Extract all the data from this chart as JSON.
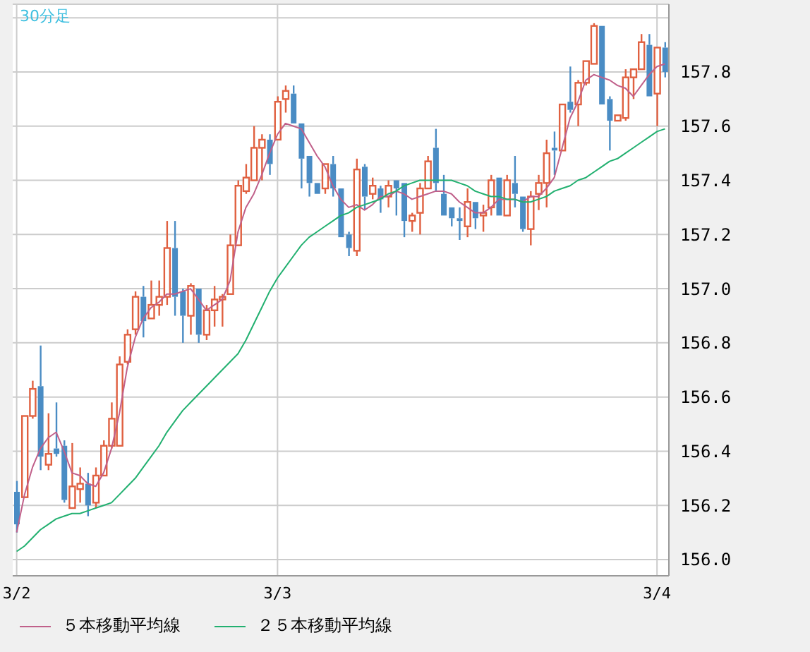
{
  "chart_data": {
    "type": "candlestick",
    "title": "30分足",
    "categories": [
      "3/2",
      null,
      null,
      null,
      null,
      null,
      null,
      null,
      null,
      null,
      null,
      null,
      null,
      null,
      null,
      null,
      null,
      null,
      null,
      null,
      null,
      null,
      null,
      null,
      null,
      null,
      null,
      null,
      null,
      null,
      null,
      null,
      null,
      "3/3",
      null,
      null,
      null,
      null,
      null,
      null,
      null,
      null,
      null,
      null,
      null,
      null,
      null,
      null,
      null,
      null,
      null,
      null,
      null,
      null,
      null,
      null,
      null,
      null,
      null,
      null,
      null,
      null,
      null,
      null,
      null,
      null,
      null,
      null,
      null,
      null,
      null,
      null,
      null,
      null,
      null,
      null,
      null,
      null,
      null,
      null,
      null,
      "3/4",
      null
    ],
    "ohlc": [
      [
        156.25,
        156.29,
        156.1,
        156.13
      ],
      [
        156.23,
        156.53,
        156.23,
        156.53
      ],
      [
        156.53,
        156.66,
        156.52,
        156.63
      ],
      [
        156.64,
        156.79,
        156.33,
        156.38
      ],
      [
        156.35,
        156.54,
        156.33,
        156.39
      ],
      [
        156.41,
        156.58,
        156.38,
        156.39
      ],
      [
        156.42,
        156.44,
        156.21,
        156.22
      ],
      [
        156.19,
        156.43,
        156.19,
        156.27
      ],
      [
        156.26,
        156.34,
        156.21,
        156.28
      ],
      [
        156.28,
        156.32,
        156.16,
        156.2
      ],
      [
        156.21,
        156.34,
        156.19,
        156.31
      ],
      [
        156.31,
        156.44,
        156.31,
        156.42
      ],
      [
        156.42,
        156.58,
        156.41,
        156.52
      ],
      [
        156.42,
        156.75,
        156.42,
        156.72
      ],
      [
        156.73,
        156.85,
        156.72,
        156.83
      ],
      [
        156.85,
        156.99,
        156.83,
        156.97
      ],
      [
        156.97,
        157.01,
        156.82,
        156.88
      ],
      [
        156.89,
        157.03,
        156.89,
        156.94
      ],
      [
        156.94,
        157.03,
        156.9,
        156.97
      ],
      [
        156.97,
        157.25,
        156.94,
        157.15
      ],
      [
        157.15,
        157.25,
        156.9,
        156.97
      ],
      [
        156.99,
        157.0,
        156.8,
        156.9
      ],
      [
        156.9,
        157.02,
        156.83,
        157.01
      ],
      [
        157.0,
        157.0,
        156.8,
        156.83
      ],
      [
        156.83,
        156.94,
        156.81,
        156.92
      ],
      [
        156.92,
        157.01,
        156.86,
        156.96
      ],
      [
        156.96,
        156.98,
        156.86,
        156.97
      ],
      [
        156.98,
        157.2,
        156.98,
        157.16
      ],
      [
        157.16,
        157.4,
        157.16,
        157.38
      ],
      [
        157.36,
        157.46,
        157.35,
        157.41
      ],
      [
        157.4,
        157.6,
        157.4,
        157.52
      ],
      [
        157.52,
        157.57,
        157.4,
        157.55
      ],
      [
        157.55,
        157.57,
        157.42,
        157.46
      ],
      [
        157.55,
        157.71,
        157.55,
        157.69
      ],
      [
        157.7,
        157.75,
        157.65,
        157.73
      ],
      [
        157.72,
        157.75,
        157.61,
        157.61
      ],
      [
        157.61,
        157.61,
        157.37,
        157.48
      ],
      [
        157.49,
        157.49,
        157.34,
        157.39
      ],
      [
        157.39,
        157.39,
        157.35,
        157.35
      ],
      [
        157.37,
        157.46,
        157.35,
        157.46
      ],
      [
        157.46,
        157.49,
        157.34,
        157.37
      ],
      [
        157.37,
        157.37,
        157.19,
        157.19
      ],
      [
        157.2,
        157.21,
        157.12,
        157.15
      ],
      [
        157.14,
        157.48,
        157.12,
        157.44
      ],
      [
        157.45,
        157.46,
        157.29,
        157.34
      ],
      [
        157.35,
        157.41,
        157.33,
        157.38
      ],
      [
        157.37,
        157.38,
        157.28,
        157.33
      ],
      [
        157.34,
        157.4,
        157.3,
        157.38
      ],
      [
        157.4,
        157.4,
        157.27,
        157.37
      ],
      [
        157.39,
        157.39,
        157.19,
        157.25
      ],
      [
        157.25,
        157.28,
        157.21,
        157.27
      ],
      [
        157.28,
        157.39,
        157.2,
        157.37
      ],
      [
        157.37,
        157.49,
        157.37,
        157.47
      ],
      [
        157.52,
        157.59,
        157.36,
        157.39
      ],
      [
        157.35,
        157.42,
        157.27,
        157.27
      ],
      [
        157.3,
        157.3,
        157.23,
        157.26
      ],
      [
        157.26,
        157.3,
        157.18,
        157.25
      ],
      [
        157.23,
        157.37,
        157.19,
        157.32
      ],
      [
        157.32,
        157.32,
        157.22,
        157.26
      ],
      [
        157.27,
        157.31,
        157.21,
        157.28
      ],
      [
        157.3,
        157.42,
        157.27,
        157.4
      ],
      [
        157.41,
        157.41,
        157.27,
        157.27
      ],
      [
        157.27,
        157.42,
        157.27,
        157.4
      ],
      [
        157.39,
        157.49,
        157.3,
        157.35
      ],
      [
        157.34,
        157.34,
        157.21,
        157.22
      ],
      [
        157.22,
        157.36,
        157.16,
        157.34
      ],
      [
        157.35,
        157.42,
        157.29,
        157.39
      ],
      [
        157.39,
        157.55,
        157.3,
        157.5
      ],
      [
        157.52,
        157.58,
        157.42,
        157.51
      ],
      [
        157.51,
        157.68,
        157.51,
        157.68
      ],
      [
        157.69,
        157.82,
        157.65,
        157.66
      ],
      [
        157.68,
        157.77,
        157.6,
        157.76
      ],
      [
        157.76,
        157.84,
        157.75,
        157.84
      ],
      [
        157.83,
        157.98,
        157.83,
        157.97
      ],
      [
        157.97,
        157.97,
        157.68,
        157.68
      ],
      [
        157.7,
        157.71,
        157.51,
        157.62
      ],
      [
        157.62,
        157.64,
        157.62,
        157.64
      ],
      [
        157.63,
        157.81,
        157.62,
        157.78
      ],
      [
        157.78,
        157.81,
        157.7,
        157.81
      ],
      [
        157.81,
        157.94,
        157.81,
        157.91
      ],
      [
        157.9,
        157.94,
        157.71,
        157.71
      ],
      [
        157.72,
        157.89,
        157.6,
        157.89
      ],
      [
        157.89,
        157.91,
        157.78,
        157.8
      ]
    ],
    "colors": [
      "#4a8cc4",
      "#e06040",
      "#e06040",
      "#4a8cc4",
      "#e06040",
      "#4a8cc4",
      "#4a8cc4",
      "#e06040",
      "#e06040",
      "#4a8cc4",
      "#e06040",
      "#e06040",
      "#e06040",
      "#e06040",
      "#e06040",
      "#e06040",
      "#4a8cc4",
      "#e06040",
      "#e06040",
      "#e06040",
      "#4a8cc4",
      "#4a8cc4",
      "#e06040",
      "#4a8cc4",
      "#e06040",
      "#e06040",
      "#e06040",
      "#e06040",
      "#e06040",
      "#e06040",
      "#e06040",
      "#e06040",
      "#4a8cc4",
      "#e06040",
      "#e06040",
      "#4a8cc4",
      "#4a8cc4",
      "#4a8cc4",
      "#4a8cc4",
      "#e06040",
      "#4a8cc4",
      "#4a8cc4",
      "#4a8cc4",
      "#e06040",
      "#4a8cc4",
      "#e06040",
      "#4a8cc4",
      "#e06040",
      "#4a8cc4",
      "#4a8cc4",
      "#e06040",
      "#e06040",
      "#e06040",
      "#4a8cc4",
      "#4a8cc4",
      "#4a8cc4",
      "#4a8cc4",
      "#e06040",
      "#4a8cc4",
      "#e06040",
      "#e06040",
      "#4a8cc4",
      "#e06040",
      "#4a8cc4",
      "#4a8cc4",
      "#e06040",
      "#e06040",
      "#e06040",
      "#4a8cc4",
      "#e06040",
      "#4a8cc4",
      "#e06040",
      "#e06040",
      "#e06040",
      "#4a8cc4",
      "#4a8cc4",
      "#e06040",
      "#e06040",
      "#e06040",
      "#e06040",
      "#4a8cc4",
      "#e06040",
      "#4a8cc4"
    ],
    "series": [
      {
        "type": "line",
        "name": "５本移動平均線",
        "color": "#c0608a",
        "values": [
          156.1,
          156.24,
          156.34,
          156.41,
          156.45,
          156.47,
          156.4,
          156.32,
          156.31,
          156.28,
          156.27,
          156.32,
          156.41,
          156.54,
          156.71,
          156.82,
          156.89,
          156.93,
          156.95,
          156.98,
          156.98,
          156.99,
          157.0,
          156.96,
          156.92,
          156.94,
          156.96,
          157.03,
          157.21,
          157.3,
          157.35,
          157.42,
          157.5,
          157.57,
          157.61,
          157.6,
          157.59,
          157.54,
          157.49,
          157.45,
          157.38,
          157.33,
          157.3,
          157.31,
          157.29,
          157.31,
          157.34,
          157.34,
          157.36,
          157.35,
          157.33,
          157.34,
          157.35,
          157.36,
          157.36,
          157.35,
          157.32,
          157.3,
          157.28,
          157.28,
          157.3,
          157.33,
          157.33,
          157.33,
          157.32,
          157.34,
          157.34,
          157.37,
          157.41,
          157.52,
          157.63,
          157.69,
          157.77,
          157.79,
          157.78,
          157.77,
          157.75,
          157.74,
          157.71,
          157.75,
          157.79,
          157.82,
          157.83
        ]
      },
      {
        "type": "line",
        "name": "２５本移動平均線",
        "color": "#22b070",
        "values": [
          156.03,
          156.05,
          156.08,
          156.11,
          156.13,
          156.15,
          156.16,
          156.17,
          156.17,
          156.18,
          156.19,
          156.2,
          156.21,
          156.24,
          156.27,
          156.3,
          156.34,
          156.38,
          156.42,
          156.47,
          156.51,
          156.55,
          156.58,
          156.61,
          156.64,
          156.67,
          156.7,
          156.73,
          156.76,
          156.81,
          156.87,
          156.93,
          156.99,
          157.04,
          157.08,
          157.12,
          157.16,
          157.19,
          157.21,
          157.23,
          157.25,
          157.27,
          157.28,
          157.3,
          157.31,
          157.32,
          157.33,
          157.35,
          157.36,
          157.38,
          157.39,
          157.4,
          157.4,
          157.4,
          157.4,
          157.4,
          157.39,
          157.38,
          157.36,
          157.35,
          157.34,
          157.34,
          157.33,
          157.33,
          157.32,
          157.32,
          157.33,
          157.34,
          157.36,
          157.37,
          157.38,
          157.4,
          157.41,
          157.43,
          157.45,
          157.47,
          157.48,
          157.5,
          157.52,
          157.54,
          157.56,
          157.58,
          157.59
        ]
      }
    ],
    "ylim": [
      155.94,
      158.05
    ],
    "yticks": [
      {
        "value": 156,
        "label": "156.0"
      },
      156.2,
      156.4,
      156.6,
      156.8,
      {
        "value": 157,
        "label": "157.0"
      },
      157.2,
      157.4,
      157.6,
      157.8,
      {
        "value": 158,
        "label": null
      }
    ],
    "grid": true,
    "legend": "bottom left"
  }
}
